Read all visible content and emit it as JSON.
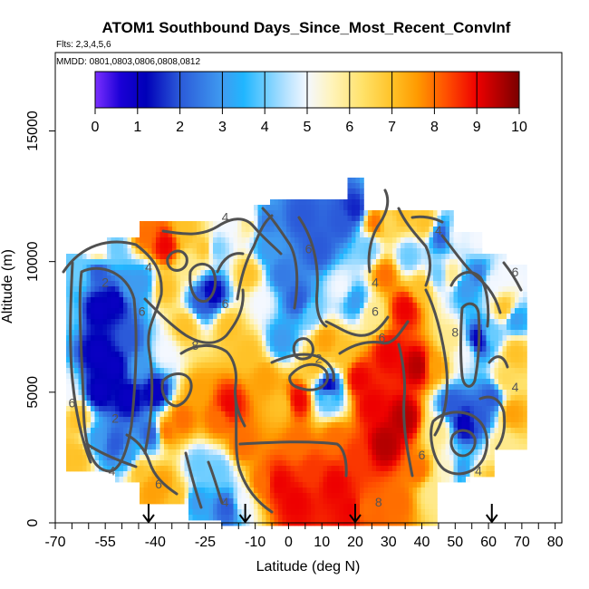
{
  "chart_data": {
    "type": "heatmap",
    "title": "ATOM1 Southbound Days_Since_Most_Recent_ConvInf",
    "subtitle_flights": "Flts: 2,3,4,5,6",
    "subtitle_dates": "MMDD: 0801,0803,0806,0808,0812",
    "xlabel": "Latitude (deg N)",
    "ylabel": "Altitude (m)",
    "xlim": [
      -70,
      82
    ],
    "ylim": [
      0,
      18000
    ],
    "x_ticks": [
      -70,
      -55,
      -40,
      -25,
      -10,
      0,
      10,
      20,
      30,
      40,
      50,
      60,
      70,
      80
    ],
    "x_tick_labels": [
      "-70",
      "-55",
      "-40",
      "-25",
      "-10",
      "0",
      "10",
      "20",
      "30",
      "40",
      "50",
      "60",
      "70",
      "80"
    ],
    "x_minor_ticks": [
      -65,
      -60,
      -50,
      -45,
      -35,
      -30,
      -20,
      -15,
      -5,
      5,
      15,
      25,
      35,
      45,
      55,
      65,
      75
    ],
    "y_ticks": [
      0,
      5000,
      10000,
      15000
    ],
    "y_tick_labels": [
      "0",
      "5000",
      "10000",
      "15000"
    ],
    "colorbar": {
      "min": 0,
      "max": 10,
      "ticks": [
        0,
        1,
        2,
        3,
        4,
        5,
        6,
        7,
        8,
        9,
        10
      ],
      "tick_labels": [
        "0",
        "1",
        "2",
        "3",
        "4",
        "5",
        "6",
        "7",
        "8",
        "9",
        "10"
      ],
      "stops": [
        {
          "value": 0,
          "color": "#7b2fff"
        },
        {
          "value": 0.6,
          "color": "#1a00d6"
        },
        {
          "value": 1.2,
          "color": "#0000b8"
        },
        {
          "value": 2,
          "color": "#2b5ad9"
        },
        {
          "value": 3,
          "color": "#3f9bf0"
        },
        {
          "value": 3.5,
          "color": "#20b6ff"
        },
        {
          "value": 4.5,
          "color": "#b5e2ff"
        },
        {
          "value": 5,
          "color": "#f4f8ff"
        },
        {
          "value": 5.6,
          "color": "#fff3b8"
        },
        {
          "value": 6.3,
          "color": "#ffe26a"
        },
        {
          "value": 7,
          "color": "#ffc227"
        },
        {
          "value": 7.6,
          "color": "#ff9a00"
        },
        {
          "value": 8.3,
          "color": "#ff4d00"
        },
        {
          "value": 9,
          "color": "#ee0000"
        },
        {
          "value": 10,
          "color": "#7a0000"
        }
      ]
    },
    "arrows_at_latitude": [
      -42,
      -13,
      20,
      61
    ],
    "data_points": [
      {
        "lat": -67,
        "alt": 2500,
        "value": 7
      },
      {
        "lat": -67,
        "alt": 5000,
        "value": 5
      },
      {
        "lat": -67,
        "alt": 8000,
        "value": 4
      },
      {
        "lat": -63,
        "alt": 2500,
        "value": 7
      },
      {
        "lat": -63,
        "alt": 4000,
        "value": 7
      },
      {
        "lat": -63,
        "alt": 9500,
        "value": 4
      },
      {
        "lat": -57,
        "alt": 3200,
        "value": 3
      },
      {
        "lat": -57,
        "alt": 5000,
        "value": 1
      },
      {
        "lat": -57,
        "alt": 6500,
        "value": 1
      },
      {
        "lat": -57,
        "alt": 8200,
        "value": 1
      },
      {
        "lat": -57,
        "alt": 9600,
        "value": 2
      },
      {
        "lat": -57,
        "alt": 10400,
        "value": 6
      },
      {
        "lat": -52,
        "alt": 3000,
        "value": 2
      },
      {
        "lat": -52,
        "alt": 6000,
        "value": 1
      },
      {
        "lat": -52,
        "alt": 8500,
        "value": 1
      },
      {
        "lat": -52,
        "alt": 10500,
        "value": 4
      },
      {
        "lat": -48,
        "alt": 2500,
        "value": 3
      },
      {
        "lat": -48,
        "alt": 4800,
        "value": 1
      },
      {
        "lat": -48,
        "alt": 7000,
        "value": 2
      },
      {
        "lat": -48,
        "alt": 9000,
        "value": 3
      },
      {
        "lat": -45,
        "alt": 2000,
        "value": 7
      },
      {
        "lat": -45,
        "alt": 6000,
        "value": 3
      },
      {
        "lat": -44,
        "alt": 9200,
        "value": 3
      },
      {
        "lat": -43,
        "alt": 11000,
        "value": 8
      },
      {
        "lat": -41,
        "alt": 1200,
        "value": 7.5
      },
      {
        "lat": -41,
        "alt": 3400,
        "value": 2
      },
      {
        "lat": -40,
        "alt": 5000,
        "value": 1
      },
      {
        "lat": -38,
        "alt": 1500,
        "value": 7.5
      },
      {
        "lat": -37,
        "alt": 3500,
        "value": 8
      },
      {
        "lat": -37,
        "alt": 6500,
        "value": 5
      },
      {
        "lat": -37,
        "alt": 9000,
        "value": 7
      },
      {
        "lat": -37,
        "alt": 10600,
        "value": 9
      },
      {
        "lat": -33,
        "alt": 1000,
        "value": 7
      },
      {
        "lat": -32,
        "alt": 4000,
        "value": 8
      },
      {
        "lat": -31,
        "alt": 7500,
        "value": 7
      },
      {
        "lat": -30,
        "alt": 9800,
        "value": 6
      },
      {
        "lat": -31,
        "alt": 11200,
        "value": 7
      },
      {
        "lat": -28,
        "alt": 800,
        "value": 3
      },
      {
        "lat": -27,
        "alt": 2200,
        "value": 4
      },
      {
        "lat": -27,
        "alt": 5000,
        "value": 7.5
      },
      {
        "lat": -26,
        "alt": 8500,
        "value": 2
      },
      {
        "lat": -25,
        "alt": 10500,
        "value": 7
      },
      {
        "lat": -23,
        "alt": 8800,
        "value": 1
      },
      {
        "lat": -22,
        "alt": 10500,
        "value": 4
      },
      {
        "lat": -21,
        "alt": 2000,
        "value": 4
      },
      {
        "lat": -21,
        "alt": 4000,
        "value": 8
      },
      {
        "lat": -18,
        "alt": 600,
        "value": 2
      },
      {
        "lat": -18,
        "alt": 4500,
        "value": 9
      },
      {
        "lat": -18,
        "alt": 7500,
        "value": 7
      },
      {
        "lat": -17,
        "alt": 11500,
        "value": 5
      },
      {
        "lat": -14,
        "alt": 800,
        "value": 5
      },
      {
        "lat": -14,
        "alt": 3000,
        "value": 8
      },
      {
        "lat": -12,
        "alt": 6500,
        "value": 7
      },
      {
        "lat": -12,
        "alt": 9500,
        "value": 7
      },
      {
        "lat": -12,
        "alt": 11500,
        "value": 6
      },
      {
        "lat": -8,
        "alt": 1500,
        "value": 8
      },
      {
        "lat": -7,
        "alt": 5500,
        "value": 7.5
      },
      {
        "lat": -8,
        "alt": 8500,
        "value": 5
      },
      {
        "lat": -6,
        "alt": 10500,
        "value": 3
      },
      {
        "lat": -7,
        "alt": 11500,
        "value": 2.5
      },
      {
        "lat": -3,
        "alt": 1500,
        "value": 9
      },
      {
        "lat": -2,
        "alt": 4500,
        "value": 7
      },
      {
        "lat": -2,
        "alt": 7000,
        "value": 3
      },
      {
        "lat": -2,
        "alt": 9500,
        "value": 2.5
      },
      {
        "lat": 2,
        "alt": 800,
        "value": 9
      },
      {
        "lat": 3,
        "alt": 3000,
        "value": 8
      },
      {
        "lat": 3,
        "alt": 4700,
        "value": 9
      },
      {
        "lat": 3,
        "alt": 8500,
        "value": 2
      },
      {
        "lat": 4,
        "alt": 11700,
        "value": 2
      },
      {
        "lat": 7,
        "alt": 2000,
        "value": 8.5
      },
      {
        "lat": 8,
        "alt": 6000,
        "value": 7
      },
      {
        "lat": 7,
        "alt": 8000,
        "value": 4
      },
      {
        "lat": 9,
        "alt": 10500,
        "value": 2
      },
      {
        "lat": 11,
        "alt": 7000,
        "value": 7.5
      },
      {
        "lat": 12,
        "alt": 4800,
        "value": 4
      },
      {
        "lat": 12,
        "alt": 5200,
        "value": 1
      },
      {
        "lat": 14,
        "alt": 1500,
        "value": 9
      },
      {
        "lat": 14,
        "alt": 3200,
        "value": 8
      },
      {
        "lat": 16,
        "alt": 6500,
        "value": 7
      },
      {
        "lat": 16,
        "alt": 9000,
        "value": 5
      },
      {
        "lat": 16,
        "alt": 11500,
        "value": 2
      },
      {
        "lat": 19,
        "alt": 500,
        "value": 9
      },
      {
        "lat": 20,
        "alt": 2500,
        "value": 8.5
      },
      {
        "lat": 21,
        "alt": 5500,
        "value": 9
      },
      {
        "lat": 20,
        "alt": 8500,
        "value": 3
      },
      {
        "lat": 20,
        "alt": 12000,
        "value": 1.5
      },
      {
        "lat": 23,
        "alt": 500,
        "value": 8
      },
      {
        "lat": 25,
        "alt": 4500,
        "value": 9
      },
      {
        "lat": 25,
        "alt": 8000,
        "value": 6
      },
      {
        "lat": 24,
        "alt": 10500,
        "value": 4
      },
      {
        "lat": 26,
        "alt": 11500,
        "value": 8
      },
      {
        "lat": 29,
        "alt": 3000,
        "value": 9.5
      },
      {
        "lat": 30,
        "alt": 6500,
        "value": 9
      },
      {
        "lat": 29,
        "alt": 9500,
        "value": 8
      },
      {
        "lat": 30,
        "alt": 11500,
        "value": 6.5
      },
      {
        "lat": 33,
        "alt": 800,
        "value": 8
      },
      {
        "lat": 35,
        "alt": 4000,
        "value": 9.5
      },
      {
        "lat": 35,
        "alt": 8200,
        "value": 9
      },
      {
        "lat": 36,
        "alt": 10200,
        "value": 4
      },
      {
        "lat": 34,
        "alt": 11800,
        "value": 7
      },
      {
        "lat": 39,
        "alt": 2000,
        "value": 8
      },
      {
        "lat": 39,
        "alt": 6000,
        "value": 9.5
      },
      {
        "lat": 40,
        "alt": 9000,
        "value": 7
      },
      {
        "lat": 41,
        "alt": 11500,
        "value": 7
      },
      {
        "lat": 43,
        "alt": 1200,
        "value": 6
      },
      {
        "lat": 45,
        "alt": 3500,
        "value": 6
      },
      {
        "lat": 44,
        "alt": 6000,
        "value": 7.5
      },
      {
        "lat": 45,
        "alt": 9500,
        "value": 4
      },
      {
        "lat": 46,
        "alt": 11000,
        "value": 2
      },
      {
        "lat": 48,
        "alt": 2000,
        "value": 5.5
      },
      {
        "lat": 49,
        "alt": 4500,
        "value": 2
      },
      {
        "lat": 49,
        "alt": 7000,
        "value": 6
      },
      {
        "lat": 49,
        "alt": 9500,
        "value": 6
      },
      {
        "lat": 50,
        "alt": 11000,
        "value": 5
      },
      {
        "lat": 52,
        "alt": 2000,
        "value": 3
      },
      {
        "lat": 53,
        "alt": 3800,
        "value": 1
      },
      {
        "lat": 53,
        "alt": 6500,
        "value": 5
      },
      {
        "lat": 53,
        "alt": 9000,
        "value": 3
      },
      {
        "lat": 56,
        "alt": 1500,
        "value": 6.5
      },
      {
        "lat": 57,
        "alt": 4000,
        "value": 2
      },
      {
        "lat": 57,
        "alt": 7000,
        "value": 1
      },
      {
        "lat": 57,
        "alt": 9500,
        "value": 2.5
      },
      {
        "lat": 57,
        "alt": 10800,
        "value": 5
      },
      {
        "lat": 61,
        "alt": 1500,
        "value": 7
      },
      {
        "lat": 61,
        "alt": 4800,
        "value": 2
      },
      {
        "lat": 61,
        "alt": 7200,
        "value": 4
      },
      {
        "lat": 61,
        "alt": 9200,
        "value": 5
      },
      {
        "lat": 64,
        "alt": 3000,
        "value": 6
      },
      {
        "lat": 65,
        "alt": 5500,
        "value": 6.5
      },
      {
        "lat": 65,
        "alt": 8200,
        "value": 7
      },
      {
        "lat": 65,
        "alt": 9500,
        "value": 5
      },
      {
        "lat": 67,
        "alt": 4200,
        "value": 7.5
      },
      {
        "lat": 68,
        "alt": 6500,
        "value": 7
      },
      {
        "lat": 68,
        "alt": 7800,
        "value": 3
      }
    ],
    "contour_labels": [
      {
        "text": "2",
        "lat": -55,
        "alt": 9200
      },
      {
        "text": "4",
        "lat": -42,
        "alt": 9800
      },
      {
        "text": "6",
        "lat": -44,
        "alt": 8100
      },
      {
        "text": "6",
        "lat": -65,
        "alt": 4600
      },
      {
        "text": "4",
        "lat": -53,
        "alt": 2000
      },
      {
        "text": "2",
        "lat": -52,
        "alt": 4000
      },
      {
        "text": "4",
        "lat": -19,
        "alt": 11700
      },
      {
        "text": "8",
        "lat": -28,
        "alt": 6800
      },
      {
        "text": "6",
        "lat": -19,
        "alt": 8400
      },
      {
        "text": "6",
        "lat": -39,
        "alt": 1500
      },
      {
        "text": "4",
        "lat": -19,
        "alt": 800
      },
      {
        "text": "6",
        "lat": 6,
        "alt": 10500
      },
      {
        "text": "6",
        "lat": 26,
        "alt": 8100
      },
      {
        "text": "6",
        "lat": 28,
        "alt": 7100
      },
      {
        "text": "4",
        "lat": 26,
        "alt": 9200
      },
      {
        "text": "2",
        "lat": 9,
        "alt": 6300
      },
      {
        "text": "8",
        "lat": 27,
        "alt": 800
      },
      {
        "text": "6",
        "lat": 40,
        "alt": 2600
      },
      {
        "text": "4",
        "lat": 45,
        "alt": 11200
      },
      {
        "text": "8",
        "lat": 50,
        "alt": 7300
      },
      {
        "text": "4",
        "lat": 57,
        "alt": 2000
      },
      {
        "text": "6",
        "lat": 68,
        "alt": 9600
      },
      {
        "text": "4",
        "lat": 68,
        "alt": 5200
      }
    ]
  }
}
